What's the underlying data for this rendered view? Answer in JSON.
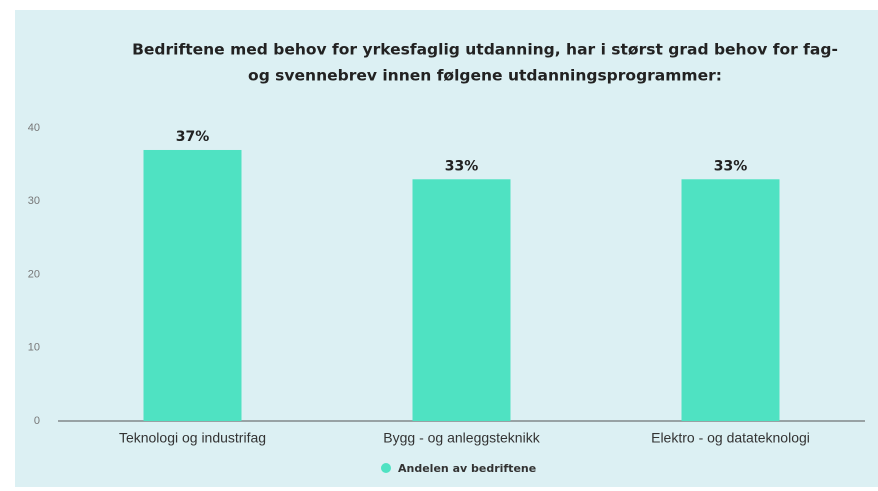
{
  "chart_data": {
    "type": "bar",
    "title": [
      "Bedriftene med behov for yrkesfaglig utdanning, har i størst grad behov for fag-",
      "og svennebrev innen følgene utdanningsprogrammer:"
    ],
    "categories": [
      "Teknologi og industrifag",
      "Bygg - og anleggsteknikk",
      "Elektro - og datateknologi"
    ],
    "series": [
      {
        "name": "Andelen av bedriftene",
        "color": "#4fe2c2",
        "values": [
          37,
          33,
          33
        ],
        "value_labels": [
          "37%",
          "33%",
          "33%"
        ]
      }
    ],
    "ylim": [
      0,
      40
    ],
    "yticks": [
      0,
      10,
      20,
      30,
      40
    ],
    "grid": false,
    "legend": "bottom"
  }
}
